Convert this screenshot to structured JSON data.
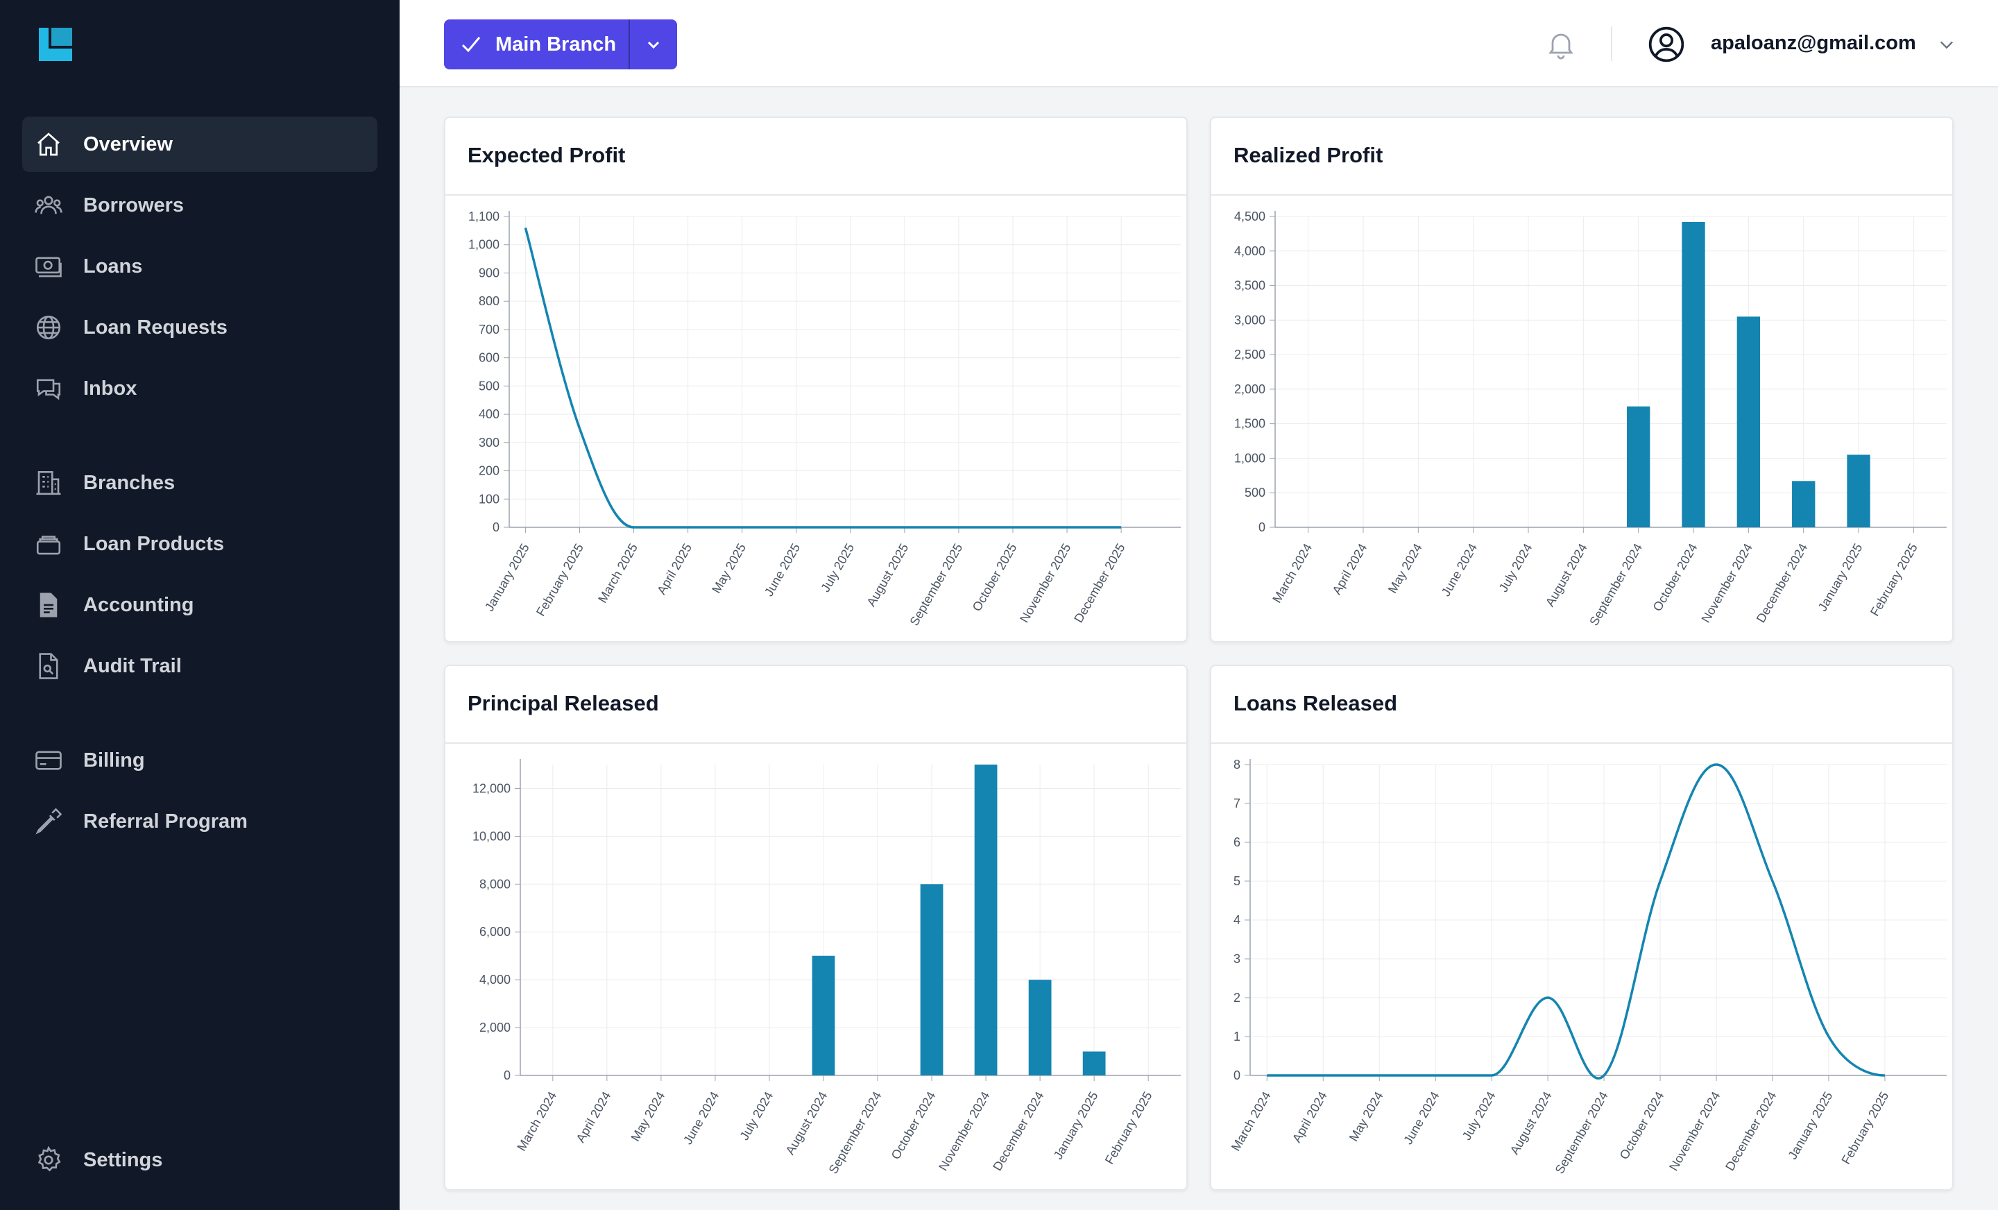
{
  "sidebar": {
    "logo_icon": "lendbook-logo",
    "items": [
      {
        "label": "Overview",
        "icon": "home-icon",
        "active": true
      },
      {
        "label": "Borrowers",
        "icon": "users-icon"
      },
      {
        "label": "Loans",
        "icon": "cash-icon"
      },
      {
        "label": "Loan Requests",
        "icon": "globe-icon"
      },
      {
        "label": "Inbox",
        "icon": "chat-icon"
      },
      {
        "label": "Branches",
        "icon": "building-icon"
      },
      {
        "label": "Loan Products",
        "icon": "stack-icon"
      },
      {
        "label": "Accounting",
        "icon": "document-icon"
      },
      {
        "label": "Audit Trail",
        "icon": "document-search-icon"
      },
      {
        "label": "Billing",
        "icon": "credit-card-icon"
      },
      {
        "label": "Referral Program",
        "icon": "eyedropper-icon"
      },
      {
        "label": "Settings",
        "icon": "gear-icon"
      }
    ]
  },
  "header": {
    "branch_label": "Main Branch",
    "user_email": "apaloanz@gmail.com"
  },
  "colors": {
    "accent": "#4f46e5",
    "series": "#1485b1",
    "sidebar": "#111827"
  },
  "chart_data": [
    {
      "id": "expected",
      "type": "line",
      "title": "Expected Profit",
      "x": [
        "January 2025",
        "February 2025",
        "March 2025",
        "April 2025",
        "May 2025",
        "June 2025",
        "July 2025",
        "August 2025",
        "September 2025",
        "October 2025",
        "November 2025",
        "December 2025"
      ],
      "values": [
        1060,
        350,
        0,
        0,
        0,
        0,
        0,
        0,
        0,
        0,
        0,
        0
      ],
      "yticks": [
        "0",
        "100",
        "200",
        "300",
        "400",
        "500",
        "600",
        "700",
        "800",
        "900",
        "1,000",
        "1,100"
      ],
      "ylim": [
        0,
        1100
      ],
      "grid": true,
      "legend": "none"
    },
    {
      "id": "realized",
      "type": "bar",
      "title": "Realized Profit",
      "categories": [
        "March 2024",
        "April 2024",
        "May 2024",
        "June 2024",
        "July 2024",
        "August 2024",
        "September 2024",
        "October 2024",
        "November 2024",
        "December 2024",
        "January 2025",
        "February 2025"
      ],
      "values": [
        0,
        0,
        0,
        0,
        0,
        0,
        1750,
        4420,
        3050,
        670,
        1050,
        0
      ],
      "yticks": [
        "0",
        "500",
        "1,000",
        "1,500",
        "2,000",
        "2,500",
        "3,000",
        "3,500",
        "4,000",
        "4,500"
      ],
      "ylim": [
        0,
        4500
      ],
      "grid": true,
      "legend": "none"
    },
    {
      "id": "principal",
      "type": "bar",
      "title": "Principal Released",
      "categories": [
        "March 2024",
        "April 2024",
        "May 2024",
        "June 2024",
        "July 2024",
        "August 2024",
        "September 2024",
        "October 2024",
        "November 2024",
        "December 2024",
        "January 2025",
        "February 2025"
      ],
      "values": [
        0,
        0,
        0,
        0,
        0,
        5000,
        0,
        8000,
        13000,
        4000,
        1000,
        0
      ],
      "yticks": [
        "0",
        "2,000",
        "4,000",
        "6,000",
        "8,000",
        "10,000",
        "12,000"
      ],
      "ylim": [
        0,
        13000
      ],
      "grid": true,
      "legend": "none"
    },
    {
      "id": "loans",
      "type": "line",
      "title": "Loans Released",
      "x": [
        "March 2024",
        "April 2024",
        "May 2024",
        "June 2024",
        "July 2024",
        "August 2024",
        "September 2024",
        "October 2024",
        "November 2024",
        "December 2024",
        "January 2025",
        "February 2025"
      ],
      "values": [
        0,
        0,
        0,
        0,
        0,
        2,
        0,
        5,
        8,
        5,
        1,
        0
      ],
      "yticks": [
        "0",
        "1",
        "2",
        "3",
        "4",
        "5",
        "6",
        "7",
        "8"
      ],
      "ylim": [
        0,
        8
      ],
      "grid": true,
      "legend": "none"
    }
  ]
}
